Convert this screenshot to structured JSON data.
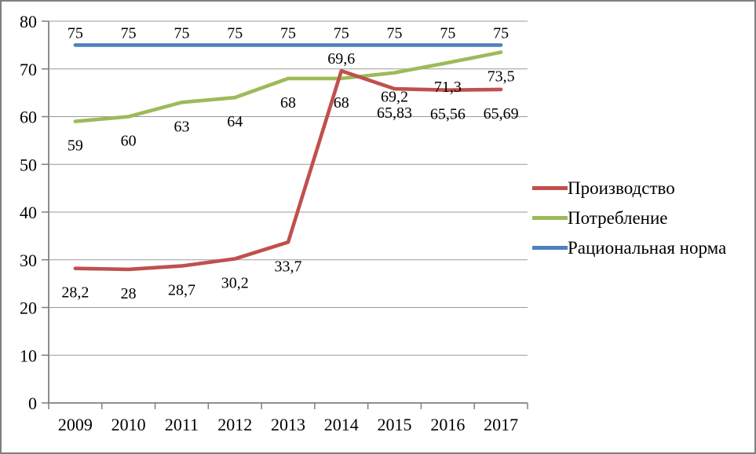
{
  "chart_data": {
    "type": "line",
    "title": "",
    "xlabel": "",
    "ylabel": "",
    "x": [
      "2009",
      "2010",
      "2011",
      "2012",
      "2013",
      "2014",
      "2015",
      "2016",
      "2017"
    ],
    "ylim": [
      0,
      80
    ],
    "yticks": [
      0,
      10,
      20,
      30,
      40,
      50,
      60,
      70,
      80
    ],
    "grid": true,
    "legend_position": "right",
    "decimal_separator": ",",
    "series": [
      {
        "id": "production",
        "name": "Производство",
        "color": "#C0504D",
        "values": [
          28.2,
          28,
          28.7,
          30.2,
          33.7,
          69.6,
          65.83,
          65.56,
          65.69
        ],
        "labels": [
          "28,2",
          "28",
          "28,7",
          "30,2",
          "33,7",
          "69,6",
          "65,83",
          "65,56",
          "65,69"
        ],
        "label_positions": [
          "below",
          "below",
          "below",
          "below",
          "below",
          "above",
          "below",
          "below",
          "below"
        ]
      },
      {
        "id": "consumption",
        "name": "Потребление",
        "color": "#9BBB59",
        "values": [
          59,
          60,
          63,
          64,
          68,
          68,
          69.2,
          71.3,
          73.5
        ],
        "labels": [
          "59",
          "60",
          "63",
          "64",
          "68",
          "68",
          "69,2",
          "71,3",
          "73,5"
        ],
        "label_positions": [
          "below",
          "below",
          "below",
          "below",
          "below",
          "below",
          "below",
          "below",
          "below"
        ]
      },
      {
        "id": "rational-norm",
        "name": "Рациональная норма",
        "color": "#4F81BD",
        "values": [
          75,
          75,
          75,
          75,
          75,
          75,
          75,
          75,
          75
        ],
        "labels": [
          "75",
          "75",
          "75",
          "75",
          "75",
          "75",
          "75",
          "75",
          "75"
        ],
        "label_positions": [
          "above",
          "above",
          "above",
          "above",
          "above",
          "above",
          "above",
          "above",
          "above"
        ]
      }
    ],
    "colors": {
      "gridline": "#9a9a9a",
      "axis": "#7f7f7f",
      "frame_border": "#7f7f7f",
      "background": "#ffffff",
      "text": "#000000"
    }
  }
}
